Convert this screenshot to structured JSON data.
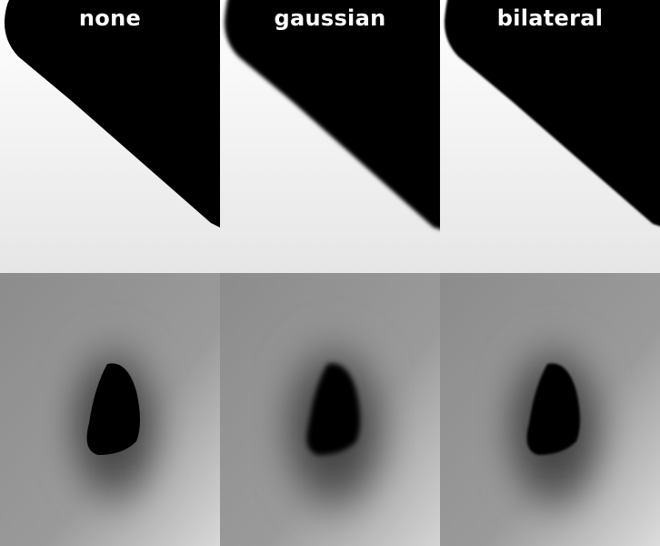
{
  "panels": [
    {
      "label": "none",
      "filter": "none"
    },
    {
      "label": "gaussian",
      "filter": "gaussian"
    },
    {
      "label": "bilateral",
      "filter": "bilateral"
    }
  ],
  "colors": {
    "black": "#000000",
    "white": "#f7f7f7",
    "light_gray": "#e4e4e4",
    "mid_gray": "#8a8a8a",
    "text": "#ffffff"
  }
}
